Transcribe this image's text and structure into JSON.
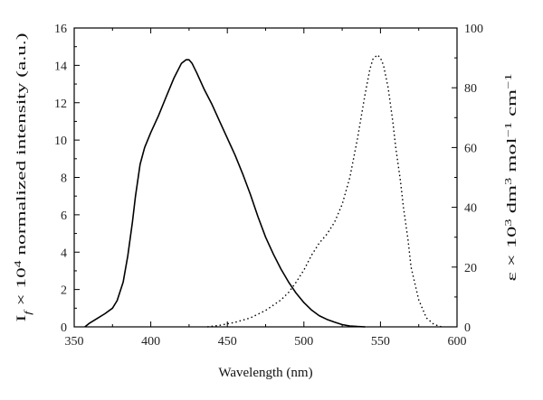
{
  "chart_data": {
    "type": "line",
    "xlabel": "Wavelength (nm)",
    "ylabel_left": "I_f × 10^4 normalized intensity (a.u.)",
    "ylabel_right": "ε × 10^3 dm^3 mol^−1 cm^−1",
    "xlim": [
      350,
      600
    ],
    "ylim_left": [
      0,
      16
    ],
    "ylim_right": [
      0,
      100
    ],
    "x_ticks": [
      350,
      400,
      450,
      500,
      550,
      600
    ],
    "y_left_ticks": [
      0,
      2,
      4,
      6,
      8,
      10,
      12,
      14,
      16
    ],
    "y_right_ticks": [
      0,
      20,
      40,
      60,
      80,
      100
    ],
    "grid": false,
    "legend": "none",
    "series": [
      {
        "axis": "left",
        "style": "solid",
        "x": [
          357,
          360,
          365,
          370,
          375,
          378,
          382,
          385,
          388,
          390,
          393,
          396,
          400,
          405,
          410,
          415,
          420,
          423,
          425,
          427,
          430,
          435,
          440,
          445,
          450,
          455,
          460,
          465,
          470,
          475,
          480,
          485,
          490,
          495,
          500,
          505,
          510,
          515,
          520,
          525,
          530,
          535,
          540
        ],
        "y": [
          0.0,
          0.2,
          0.45,
          0.7,
          1.0,
          1.4,
          2.4,
          3.8,
          5.6,
          7.0,
          8.7,
          9.6,
          10.4,
          11.3,
          12.3,
          13.3,
          14.1,
          14.3,
          14.3,
          14.1,
          13.6,
          12.7,
          11.9,
          11.0,
          10.1,
          9.2,
          8.2,
          7.1,
          5.9,
          4.8,
          3.9,
          3.1,
          2.4,
          1.8,
          1.3,
          0.9,
          0.6,
          0.4,
          0.25,
          0.12,
          0.05,
          0.02,
          0.0
        ]
      },
      {
        "axis": "right",
        "style": "dotted",
        "x": [
          437,
          445,
          455,
          465,
          475,
          485,
          490,
          495,
          500,
          505,
          510,
          515,
          520,
          525,
          530,
          535,
          540,
          543,
          545,
          547,
          548,
          550,
          552,
          555,
          558,
          560,
          563,
          565,
          568,
          570,
          575,
          580,
          585,
          590
        ],
        "y": [
          0,
          0.5,
          1.5,
          3,
          5.5,
          9,
          11.5,
          15,
          19,
          24,
          28,
          31,
          35,
          41,
          50,
          63,
          78,
          86,
          89.5,
          90.5,
          91,
          90,
          87.5,
          80,
          69,
          60,
          49,
          40,
          29,
          20,
          9,
          3,
          0.8,
          0
        ]
      }
    ]
  }
}
